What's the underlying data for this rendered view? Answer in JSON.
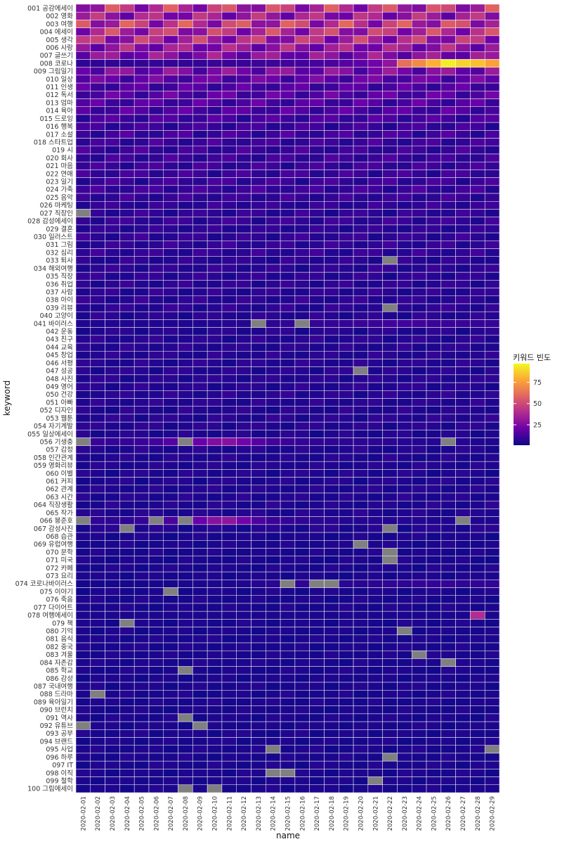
{
  "chart_data": {
    "type": "heatmap",
    "xlabel": "name",
    "ylabel": "keyword",
    "x": [
      "2020-02-01",
      "2020-02-02",
      "2020-02-03",
      "2020-02-04",
      "2020-02-05",
      "2020-02-06",
      "2020-02-07",
      "2020-02-08",
      "2020-02-09",
      "2020-02-10",
      "2020-02-11",
      "2020-02-12",
      "2020-02-13",
      "2020-02-14",
      "2020-02-15",
      "2020-02-16",
      "2020-02-17",
      "2020-02-18",
      "2020-02-19",
      "2020-02-20",
      "2020-02-21",
      "2020-02-22",
      "2020-02-23",
      "2020-02-24",
      "2020-02-25",
      "2020-02-26",
      "2020-02-27",
      "2020-02-28",
      "2020-02-29"
    ],
    "y": [
      "001 공감에세이",
      "002 영화",
      "003 여행",
      "004 에세이",
      "005 생각",
      "006 사랑",
      "007 글쓰기",
      "008 코로나",
      "009 그림일기",
      "010 일상",
      "011 인생",
      "012 독서",
      "013 엄마",
      "014 육아",
      "015 드로잉",
      "016 행복",
      "017 소설",
      "018 스타트업",
      "019 시",
      "020 회사",
      "021 마음",
      "022 연애",
      "023 일기",
      "024 가족",
      "025 음악",
      "026 마케팅",
      "027 직장인",
      "028 감성에세이",
      "029 결혼",
      "030 일러스트",
      "031 그림",
      "032 심리",
      "033 퇴사",
      "034 해외여행",
      "035 직장",
      "036 취업",
      "037 사람",
      "038 아이",
      "039 리뷰",
      "040 고양이",
      "041 바이러스",
      "042 운동",
      "043 친구",
      "044 교육",
      "045 창업",
      "046 서평",
      "047 성공",
      "048 사진",
      "049 영어",
      "050 건강",
      "051 아빠",
      "052 디자인",
      "053 웹툰",
      "054 자기계발",
      "055 일상에세이",
      "056 기생충",
      "057 감정",
      "058 인간관계",
      "059 영화리뷰",
      "060 이별",
      "061 커피",
      "062 관계",
      "063 시간",
      "064 직장생활",
      "065 작가",
      "066 봉준호",
      "067 감성사진",
      "068 습관",
      "069 유럽여행",
      "070 문학",
      "071 미국",
      "072 카페",
      "073 요리",
      "074 코로나바이러스",
      "075 이야기",
      "076 죽음",
      "077 다이어트",
      "078 여행에세이",
      "079 책",
      "080 기억",
      "081 음식",
      "082 중국",
      "083 겨울",
      "084 자존감",
      "085 학교",
      "086 감성",
      "087 국내여행",
      "088 드라마",
      "089 육아일기",
      "090 브런치",
      "091 역사",
      "092 유튜브",
      "093 공부",
      "094 브랜드",
      "095 사업",
      "096 하루",
      "097 IT",
      "098 이직",
      "099 철학",
      "100 그림에세이"
    ],
    "base_values": [
      40,
      32,
      42,
      38,
      36,
      30,
      26,
      8,
      24,
      18,
      14,
      16,
      14,
      14,
      12,
      10,
      11,
      10,
      10,
      10,
      10,
      10,
      10,
      10,
      9,
      8,
      8,
      9,
      7,
      8,
      8,
      8,
      7,
      7,
      7,
      7,
      7,
      7,
      7,
      6,
      8,
      6,
      6,
      6,
      6,
      6,
      6,
      6,
      6,
      6,
      6,
      6,
      6,
      6,
      5,
      8,
      5,
      5,
      5,
      5,
      5,
      5,
      5,
      5,
      5,
      8,
      5,
      4,
      4,
      4,
      4,
      4,
      4,
      5,
      4,
      4,
      4,
      4,
      4,
      4,
      4,
      4,
      4,
      4,
      4,
      4,
      4,
      4,
      4,
      4,
      4,
      4,
      4,
      4,
      4,
      4,
      4,
      4,
      4,
      4
    ],
    "overrides": [
      {
        "keyword": "008 코로나",
        "values": [
          8,
          8,
          8,
          8,
          9,
          9,
          9,
          9,
          9,
          10,
          10,
          10,
          11,
          11,
          12,
          12,
          13,
          14,
          16,
          18,
          22,
          30,
          62,
          70,
          80,
          95,
          88,
          84,
          76
        ]
      },
      {
        "keyword": "056 기생충",
        "values": [
          null,
          10,
          9,
          9,
          10,
          12,
          16,
          null,
          20,
          26,
          28,
          22,
          16,
          12,
          10,
          9,
          8,
          8,
          7,
          7,
          7,
          7,
          6,
          6,
          6,
          null,
          6,
          5,
          5
        ]
      },
      {
        "keyword": "066 봉준호",
        "values": [
          null,
          8,
          8,
          8,
          9,
          null,
          14,
          null,
          20,
          28,
          30,
          22,
          14,
          10,
          9,
          8,
          7,
          7,
          6,
          6,
          6,
          6,
          6,
          6,
          5,
          5,
          null,
          5,
          5
        ]
      },
      {
        "keyword": "041 바이러스",
        "values": [
          5,
          5,
          5,
          5,
          5,
          5,
          5,
          5,
          5,
          5,
          6,
          6,
          null,
          7,
          8,
          null,
          9,
          9,
          9,
          10,
          10,
          12,
          12,
          12,
          10,
          10,
          10,
          9,
          9
        ]
      },
      {
        "keyword": "074 코로나바이러스",
        "values": [
          3,
          3,
          3,
          3,
          3,
          3,
          3,
          4,
          4,
          4,
          4,
          5,
          6,
          7,
          null,
          8,
          null,
          null,
          7,
          7,
          7,
          8,
          8,
          9,
          9,
          9,
          8,
          8,
          8
        ]
      },
      {
        "keyword": "078 여행에세이",
        "values": [
          4,
          4,
          4,
          4,
          4,
          4,
          4,
          4,
          4,
          4,
          4,
          4,
          4,
          4,
          4,
          4,
          4,
          4,
          4,
          4,
          4,
          4,
          4,
          4,
          4,
          4,
          4,
          40,
          4
        ]
      }
    ],
    "missing": [
      {
        "keyword": "027 직장인",
        "date": "2020-02-01"
      },
      {
        "keyword": "033 퇴사",
        "date": "2020-02-22"
      },
      {
        "keyword": "039 리뷰",
        "date": "2020-02-22"
      },
      {
        "keyword": "047 성공",
        "date": "2020-02-20"
      },
      {
        "keyword": "067 감성사진",
        "date": "2020-02-04"
      },
      {
        "keyword": "067 감성사진",
        "date": "2020-02-22"
      },
      {
        "keyword": "069 유럽여행",
        "date": "2020-02-20"
      },
      {
        "keyword": "070 문학",
        "date": "2020-02-22"
      },
      {
        "keyword": "071 미국",
        "date": "2020-02-22"
      },
      {
        "keyword": "075 이야기",
        "date": "2020-02-07"
      },
      {
        "keyword": "079 책",
        "date": "2020-02-04"
      },
      {
        "keyword": "080 기억",
        "date": "2020-02-23"
      },
      {
        "keyword": "083 겨울",
        "date": "2020-02-24"
      },
      {
        "keyword": "084 자존감",
        "date": "2020-02-26"
      },
      {
        "keyword": "085 학교",
        "date": "2020-02-08"
      },
      {
        "keyword": "088 드라마",
        "date": "2020-02-02"
      },
      {
        "keyword": "091 역사",
        "date": "2020-02-08"
      },
      {
        "keyword": "092 유튜브",
        "date": "2020-02-01"
      },
      {
        "keyword": "092 유튜브",
        "date": "2020-02-09"
      },
      {
        "keyword": "095 사업",
        "date": "2020-02-14"
      },
      {
        "keyword": "095 사업",
        "date": "2020-02-29"
      },
      {
        "keyword": "096 하루",
        "date": "2020-02-22"
      },
      {
        "keyword": "098 이직",
        "date": "2020-02-14"
      },
      {
        "keyword": "098 이직",
        "date": "2020-02-15"
      },
      {
        "keyword": "099 철학",
        "date": "2020-02-21"
      },
      {
        "keyword": "100 그림에세이",
        "date": "2020-02-08"
      },
      {
        "keyword": "100 그림에세이",
        "date": "2020-02-10"
      }
    ],
    "zlim": [
      1,
      97
    ],
    "missing_color": "#808080",
    "grid_color": "#ffffff",
    "colormap": [
      "#0d0887",
      "#6a00a8",
      "#b12a90",
      "#e16462",
      "#fca636",
      "#f0f921"
    ],
    "legend": {
      "title": "키워드 빈도",
      "ticks": [
        25,
        50,
        75
      ],
      "position": "right"
    }
  }
}
